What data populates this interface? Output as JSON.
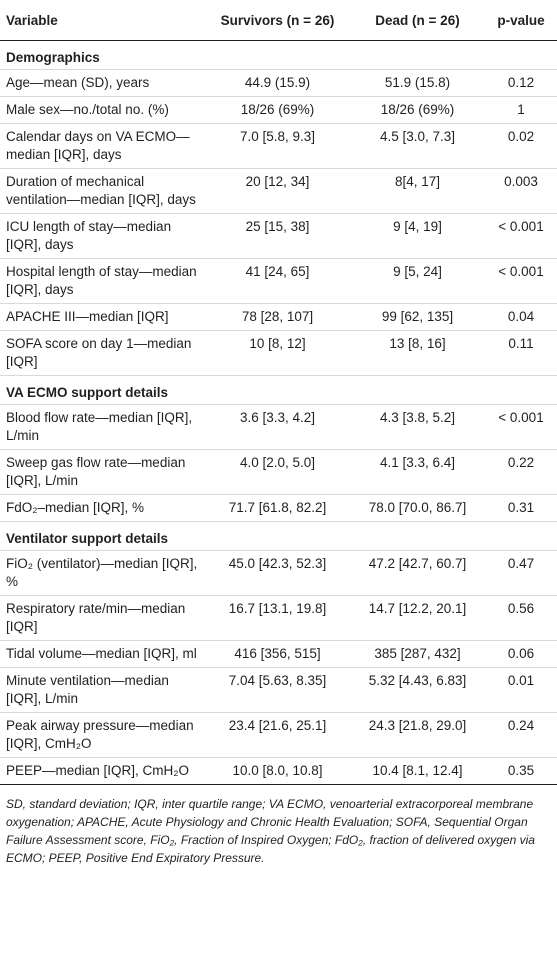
{
  "table": {
    "header": [
      "Variable",
      "Survivors (n = 26)",
      "Dead (n = 26)",
      "p-value"
    ],
    "sections": [
      {
        "title": "Demographics",
        "rows": [
          [
            "Age—mean (SD), years",
            "44.9 (15.9)",
            "51.9 (15.8)",
            "0.12"
          ],
          [
            "Male sex—no./total no. (%)",
            "18/26 (69%)",
            "18/26 (69%)",
            "1"
          ],
          [
            "Calendar days on VA ECMO—median [IQR], days",
            "7.0 [5.8, 9.3]",
            "4.5 [3.0, 7.3]",
            "0.02"
          ],
          [
            "Duration of mechanical ventilation—median [IQR], days",
            "20 [12, 34]",
            "8[4, 17]",
            "0.003"
          ],
          [
            "ICU length of stay—median [IQR], days",
            "25 [15, 38]",
            "9 [4, 19]",
            "< 0.001"
          ],
          [
            "Hospital length of stay—median [IQR], days",
            "41 [24, 65]",
            "9 [5, 24]",
            "< 0.001"
          ],
          [
            "APACHE III—median [IQR]",
            "78 [28, 107]",
            "99 [62, 135]",
            "0.04"
          ],
          [
            "SOFA score on day 1—median [IQR]",
            "10 [8, 12]",
            "13 [8, 16]",
            "0.11"
          ]
        ]
      },
      {
        "title": "VA ECMO support details",
        "rows": [
          [
            "Blood flow rate—median [IQR], L/min",
            "3.6 [3.3, 4.2]",
            "4.3 [3.8, 5.2]",
            "< 0.001"
          ],
          [
            "Sweep gas flow rate—median [IQR], L/min",
            "4.0 [2.0, 5.0]",
            "4.1 [3.3, 6.4]",
            "0.22"
          ],
          [
            "FdO₂–median [IQR], %",
            "71.7 [61.8, 82.2]",
            "78.0 [70.0, 86.7]",
            "0.31"
          ]
        ]
      },
      {
        "title": "Ventilator support details",
        "rows": [
          [
            "FiO₂ (ventilator)—median [IQR], %",
            "45.0 [42.3, 52.3]",
            "47.2 [42.7, 60.7]",
            "0.47"
          ],
          [
            "Respiratory rate/min—median [IQR]",
            "16.7 [13.1, 19.8]",
            "14.7 [12.2, 20.1]",
            "0.56"
          ],
          [
            "Tidal volume—median [IQR], ml",
            "416 [356, 515]",
            "385 [287, 432]",
            "0.06"
          ],
          [
            "Minute ventilation—median [IQR], L/min",
            "7.04 [5.63, 8.35]",
            "5.32 [4.43, 6.83]",
            "0.01"
          ],
          [
            "Peak airway pressure—median [IQR], CmH₂O",
            "23.4 [21.6, 25.1]",
            "24.3 [21.8, 29.0]",
            "0.24"
          ],
          [
            "PEEP—median [IQR], CmH₂O",
            "10.0 [8.0, 10.8]",
            "10.4 [8.1, 12.4]",
            "0.35"
          ]
        ]
      }
    ],
    "footnote": "SD, standard deviation; IQR, inter quartile range; VA ECMO, venoarterial extracorporeal membrane oxygenation; APACHE, Acute Physiology and Chronic Health Evaluation; SOFA, Sequential Organ Failure Assessment score, FiO₂, Fraction of Inspired Oxygen; FdO₂, fraction of delivered oxygen via ECMO; PEEP, Positive End Expiratory Pressure."
  }
}
